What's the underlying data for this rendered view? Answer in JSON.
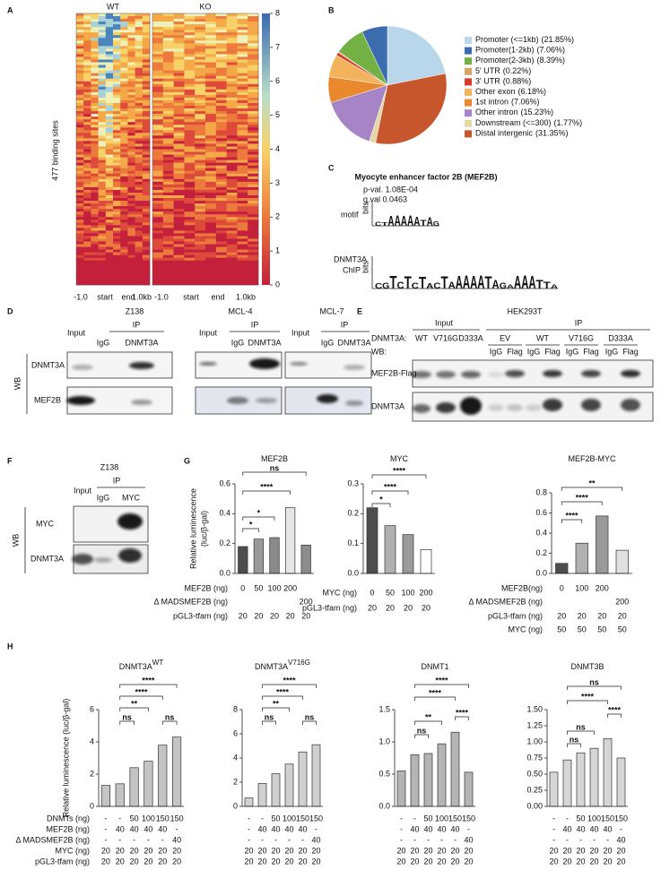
{
  "panel_labels": [
    "A",
    "B",
    "C",
    "D",
    "E",
    "F",
    "G",
    "H"
  ],
  "heatmap": {
    "columns": [
      "WT",
      "KO"
    ],
    "ylabel": "477 binding sites",
    "xticks": [
      "-1.0",
      "start",
      "end",
      "1.0kb"
    ],
    "colorbar_lim": [
      0,
      8
    ],
    "colorbar_ticks": [
      0,
      1,
      2,
      3,
      4,
      5,
      6,
      7,
      8
    ]
  },
  "panel_c": {
    "title": "Myocyte enhancer  factor 2B (MEF2B)",
    "pval": "p-val. 1.08E-04",
    "qval": "q.val 0.0463",
    "axis": "bits",
    "rows": [
      {
        "label": [
          "motif"
        ],
        "sequence": "CTAAAAATAG"
      },
      {
        "label": [
          "DNMT3A",
          "ChIP"
        ],
        "sequence": "CGTCTCTACTAAAAATAGAAAATTA"
      }
    ]
  },
  "panel_d": {
    "wb": "WB",
    "rows": [
      "DNMT3A",
      "MEF2B"
    ],
    "blots": [
      {
        "title": "Z138",
        "input": "Input",
        "ip": "IP",
        "lanes": [
          "IgG",
          "DNMT3A"
        ]
      },
      {
        "title": "MCL-4",
        "input": "Input",
        "ip": "IP",
        "lanes": [
          "IgG",
          "DNMT3A"
        ]
      },
      {
        "title": "MCL-7",
        "input": "Input",
        "ip": "IP",
        "lanes": [
          "IgG",
          "DNMT3A"
        ]
      }
    ]
  },
  "panel_e": {
    "title": "HEK293T",
    "input": "Input",
    "ip": "IP",
    "construct_label": "DNMT3A:",
    "input_lanes": [
      "WT",
      "V716G",
      "D333A"
    ],
    "wb": "WB:",
    "ip_groups": [
      "EV",
      "WT",
      "V716G",
      "D333A"
    ],
    "ip_lanes": [
      "IgG",
      "Flag"
    ],
    "rows": [
      "MEF2B-Flag",
      "DNMT3A"
    ]
  },
  "panel_f": {
    "title": "Z138",
    "input": "Input",
    "ip": "IP",
    "lanes": [
      "IgG",
      "MYC"
    ],
    "wb": "WB",
    "rows": [
      "MYC",
      "DNMT3A"
    ]
  },
  "chart_data": [
    {
      "type": "pie",
      "categories": [
        "Promoter (<=1kb)",
        "Promoter(1-2kb)",
        "Promoter(2-3kb)",
        "5' UTR",
        "3' UTR",
        "Other exon",
        "1st intron",
        "Other intron",
        "Downstream (<=300)",
        "Distal intergenic"
      ],
      "values": [
        21.85,
        7.06,
        8.39,
        0.22,
        0.88,
        6.18,
        7.06,
        15.23,
        1.77,
        31.35
      ],
      "value_labels": [
        "(21.85%)",
        "(7.06%)",
        "(8.39%)",
        "(0.22%)",
        "(0.88%)",
        "(6.18%)",
        "(7.06%)",
        "(15.23%)",
        "(1.77%)",
        "(31.35%)"
      ],
      "colors": [
        "#b9d7ea",
        "#3b6cae",
        "#73b144",
        "#d8a26a",
        "#d53a2c",
        "#f2b35c",
        "#e9882c",
        "#a784c6",
        "#e5d8a4",
        "#c8562c"
      ]
    },
    {
      "type": "bar",
      "title": "MEF2B",
      "ylabel": [
        "Relative luminescence",
        "(luc/β-gal)"
      ],
      "values": [
        0.18,
        0.23,
        0.24,
        0.44,
        0.19
      ],
      "colors": [
        "#4d4d4d",
        "#9a9a9a",
        "#8a8a8a",
        "#e6e6e6",
        "#8c8c8c"
      ],
      "ylim": [
        0,
        0.6
      ],
      "yticks": [
        {
          "value": 0,
          "label": "0.0"
        },
        0.2,
        0.4,
        0.6
      ],
      "significance": [
        "*",
        "*",
        "****",
        "ns"
      ],
      "conditions": [
        {
          "label": "MEF2B (ng)",
          "cells": [
            "0",
            "50",
            "100",
            "200",
            null
          ]
        },
        {
          "label": "Δ MADSMEF2B (ng)",
          "cells": [
            null,
            null,
            null,
            null,
            "200"
          ]
        },
        {
          "label": "pGL3-tfam (ng)",
          "cells": [
            "20",
            "20",
            "20",
            "20",
            "20"
          ]
        }
      ]
    },
    {
      "type": "bar",
      "title": "MYC",
      "values": [
        0.22,
        0.16,
        0.13,
        0.08
      ],
      "colors": [
        "#4d4d4d",
        "#b0b0b0",
        "#9a9a9a",
        "#ffffff"
      ],
      "ylim": [
        0,
        0.3
      ],
      "yticks": [
        {
          "value": 0,
          "label": "0.0"
        },
        0.1,
        0.2,
        0.3
      ],
      "significance": [
        "*",
        "****",
        "****"
      ],
      "conditions": [
        {
          "label": "MYC (ng)",
          "cells": [
            "0",
            "50",
            "100",
            "200"
          ]
        },
        {
          "label": "pGL3-tfam (ng)",
          "cells": [
            "20",
            "20",
            "20",
            "20"
          ]
        }
      ]
    },
    {
      "type": "bar",
      "title": "MEF2B-MYC",
      "values": [
        0.1,
        0.3,
        0.57,
        0.23
      ],
      "colors": [
        "#4d4d4d",
        "#b0b0b0",
        "#9a9a9a",
        "#e0e0e0"
      ],
      "ylim": [
        0,
        0.8
      ],
      "yticks": [
        {
          "value": 0,
          "label": "0.0"
        },
        0.2,
        0.4,
        0.6,
        0.8
      ],
      "significance": [
        "****",
        "****",
        "**"
      ],
      "conditions": [
        {
          "label": "MEF2B(ng)",
          "cells": [
            "0",
            "100",
            "200",
            null
          ]
        },
        {
          "label": "Δ MADSMEF2B (ng)",
          "cells": [
            null,
            null,
            null,
            "200"
          ]
        },
        {
          "label": "pGL3-tfam (ng)",
          "cells": [
            "20",
            "20",
            "20",
            "20"
          ]
        },
        {
          "label": "MYC (ng)",
          "cells": [
            "50",
            "50",
            "50",
            "50"
          ]
        }
      ]
    },
    {
      "type": "bar",
      "title": "DNMT3A",
      "title_superscript": "WT",
      "ylabel": [
        "Relative luminescence (luc/β-gal)"
      ],
      "values": [
        1.3,
        1.4,
        2.4,
        2.8,
        3.8,
        4.3
      ],
      "color": "#c4c4c4",
      "ylim": [
        0,
        6
      ],
      "yticks": [
        0,
        2,
        4,
        6
      ],
      "significance": [
        "ns",
        "**",
        "****",
        "****",
        "ns"
      ],
      "conditions": [
        {
          "label": "DNMTs (ng)",
          "cells": [
            "-",
            "-",
            "50",
            "100",
            "150",
            "150"
          ]
        },
        {
          "label": "MEF2B (ng)",
          "cells": [
            "-",
            "40",
            "40",
            "40",
            "40",
            "-"
          ]
        },
        {
          "label": "Δ MADSMEF2B (ng)",
          "cells": [
            "-",
            "-",
            "-",
            "-",
            "-",
            "40"
          ]
        },
        {
          "label": "MYC (ng)",
          "cells": [
            "20",
            "20",
            "20",
            "20",
            "20",
            "20"
          ]
        },
        {
          "label": "pGL3-tfam (ng)",
          "cells": [
            "20",
            "20",
            "20",
            "20",
            "20",
            "20"
          ]
        }
      ]
    },
    {
      "type": "bar",
      "title": "DNMT3A",
      "title_superscript": "V716G",
      "values": [
        0.7,
        1.9,
        2.7,
        3.5,
        4.5,
        5.1
      ],
      "color": "#d0d0d0",
      "ylim": [
        0,
        8
      ],
      "yticks": [
        0,
        2,
        4,
        6,
        8
      ],
      "significance": [
        "ns",
        "**",
        "****",
        "****",
        "ns"
      ],
      "conditions": [
        {
          "cells": [
            "-",
            "-",
            "50",
            "100",
            "150",
            "150"
          ]
        },
        {
          "cells": [
            "-",
            "40",
            "40",
            "40",
            "40",
            "-"
          ]
        },
        {
          "cells": [
            "-",
            "-",
            "-",
            "-",
            "-",
            "40"
          ]
        },
        {
          "cells": [
            "20",
            "20",
            "20",
            "20",
            "20",
            "20"
          ]
        },
        {
          "cells": [
            "20",
            "20",
            "20",
            "20",
            "20",
            "20"
          ]
        }
      ]
    },
    {
      "type": "bar",
      "title": "DNMT1",
      "values": [
        0.55,
        0.8,
        0.82,
        0.97,
        1.15,
        0.53
      ],
      "color": "#b4b4b4",
      "ylim": [
        0,
        1.5
      ],
      "yticks": [
        {
          "value": 0,
          "label": "0.0"
        },
        0.5,
        {
          "value": 1,
          "label": "1.0"
        },
        1.5
      ],
      "significance": [
        "ns",
        "**",
        "****",
        "****",
        "****"
      ],
      "conditions": [
        {
          "cells": [
            "-",
            "-",
            "50",
            "100",
            "150",
            "150"
          ]
        },
        {
          "cells": [
            "-",
            "40",
            "40",
            "40",
            "40",
            "-"
          ]
        },
        {
          "cells": [
            "-",
            "-",
            "-",
            "-",
            "-",
            "40"
          ]
        },
        {
          "cells": [
            "20",
            "20",
            "20",
            "20",
            "20",
            "20"
          ]
        },
        {
          "cells": [
            "20",
            "20",
            "20",
            "20",
            "20",
            "20"
          ]
        }
      ]
    },
    {
      "type": "bar",
      "title": "DNMT3B",
      "values": [
        0.53,
        0.72,
        0.83,
        0.9,
        1.05,
        0.75
      ],
      "color": "#d6d6d6",
      "ylim": [
        0,
        1.5
      ],
      "yticks": [
        {
          "value": 0,
          "label": "0.00"
        },
        0.25,
        {
          "value": 0.5,
          "label": "0.50"
        },
        0.75,
        {
          "value": 1,
          "label": "1.00"
        },
        1.25,
        {
          "value": 1.5,
          "label": "1.50"
        }
      ],
      "significance": [
        "ns",
        "ns",
        "****",
        "ns",
        "****"
      ],
      "conditions": [
        {
          "cells": [
            "-",
            "-",
            "50",
            "100",
            "150",
            "150"
          ]
        },
        {
          "cells": [
            "-",
            "40",
            "40",
            "40",
            "40",
            "-"
          ]
        },
        {
          "cells": [
            "-",
            "-",
            "-",
            "-",
            "-",
            "40"
          ]
        },
        {
          "cells": [
            "20",
            "20",
            "20",
            "20",
            "20",
            "20"
          ]
        },
        {
          "cells": [
            "20",
            "20",
            "20",
            "20",
            "20",
            "20"
          ]
        }
      ]
    }
  ]
}
